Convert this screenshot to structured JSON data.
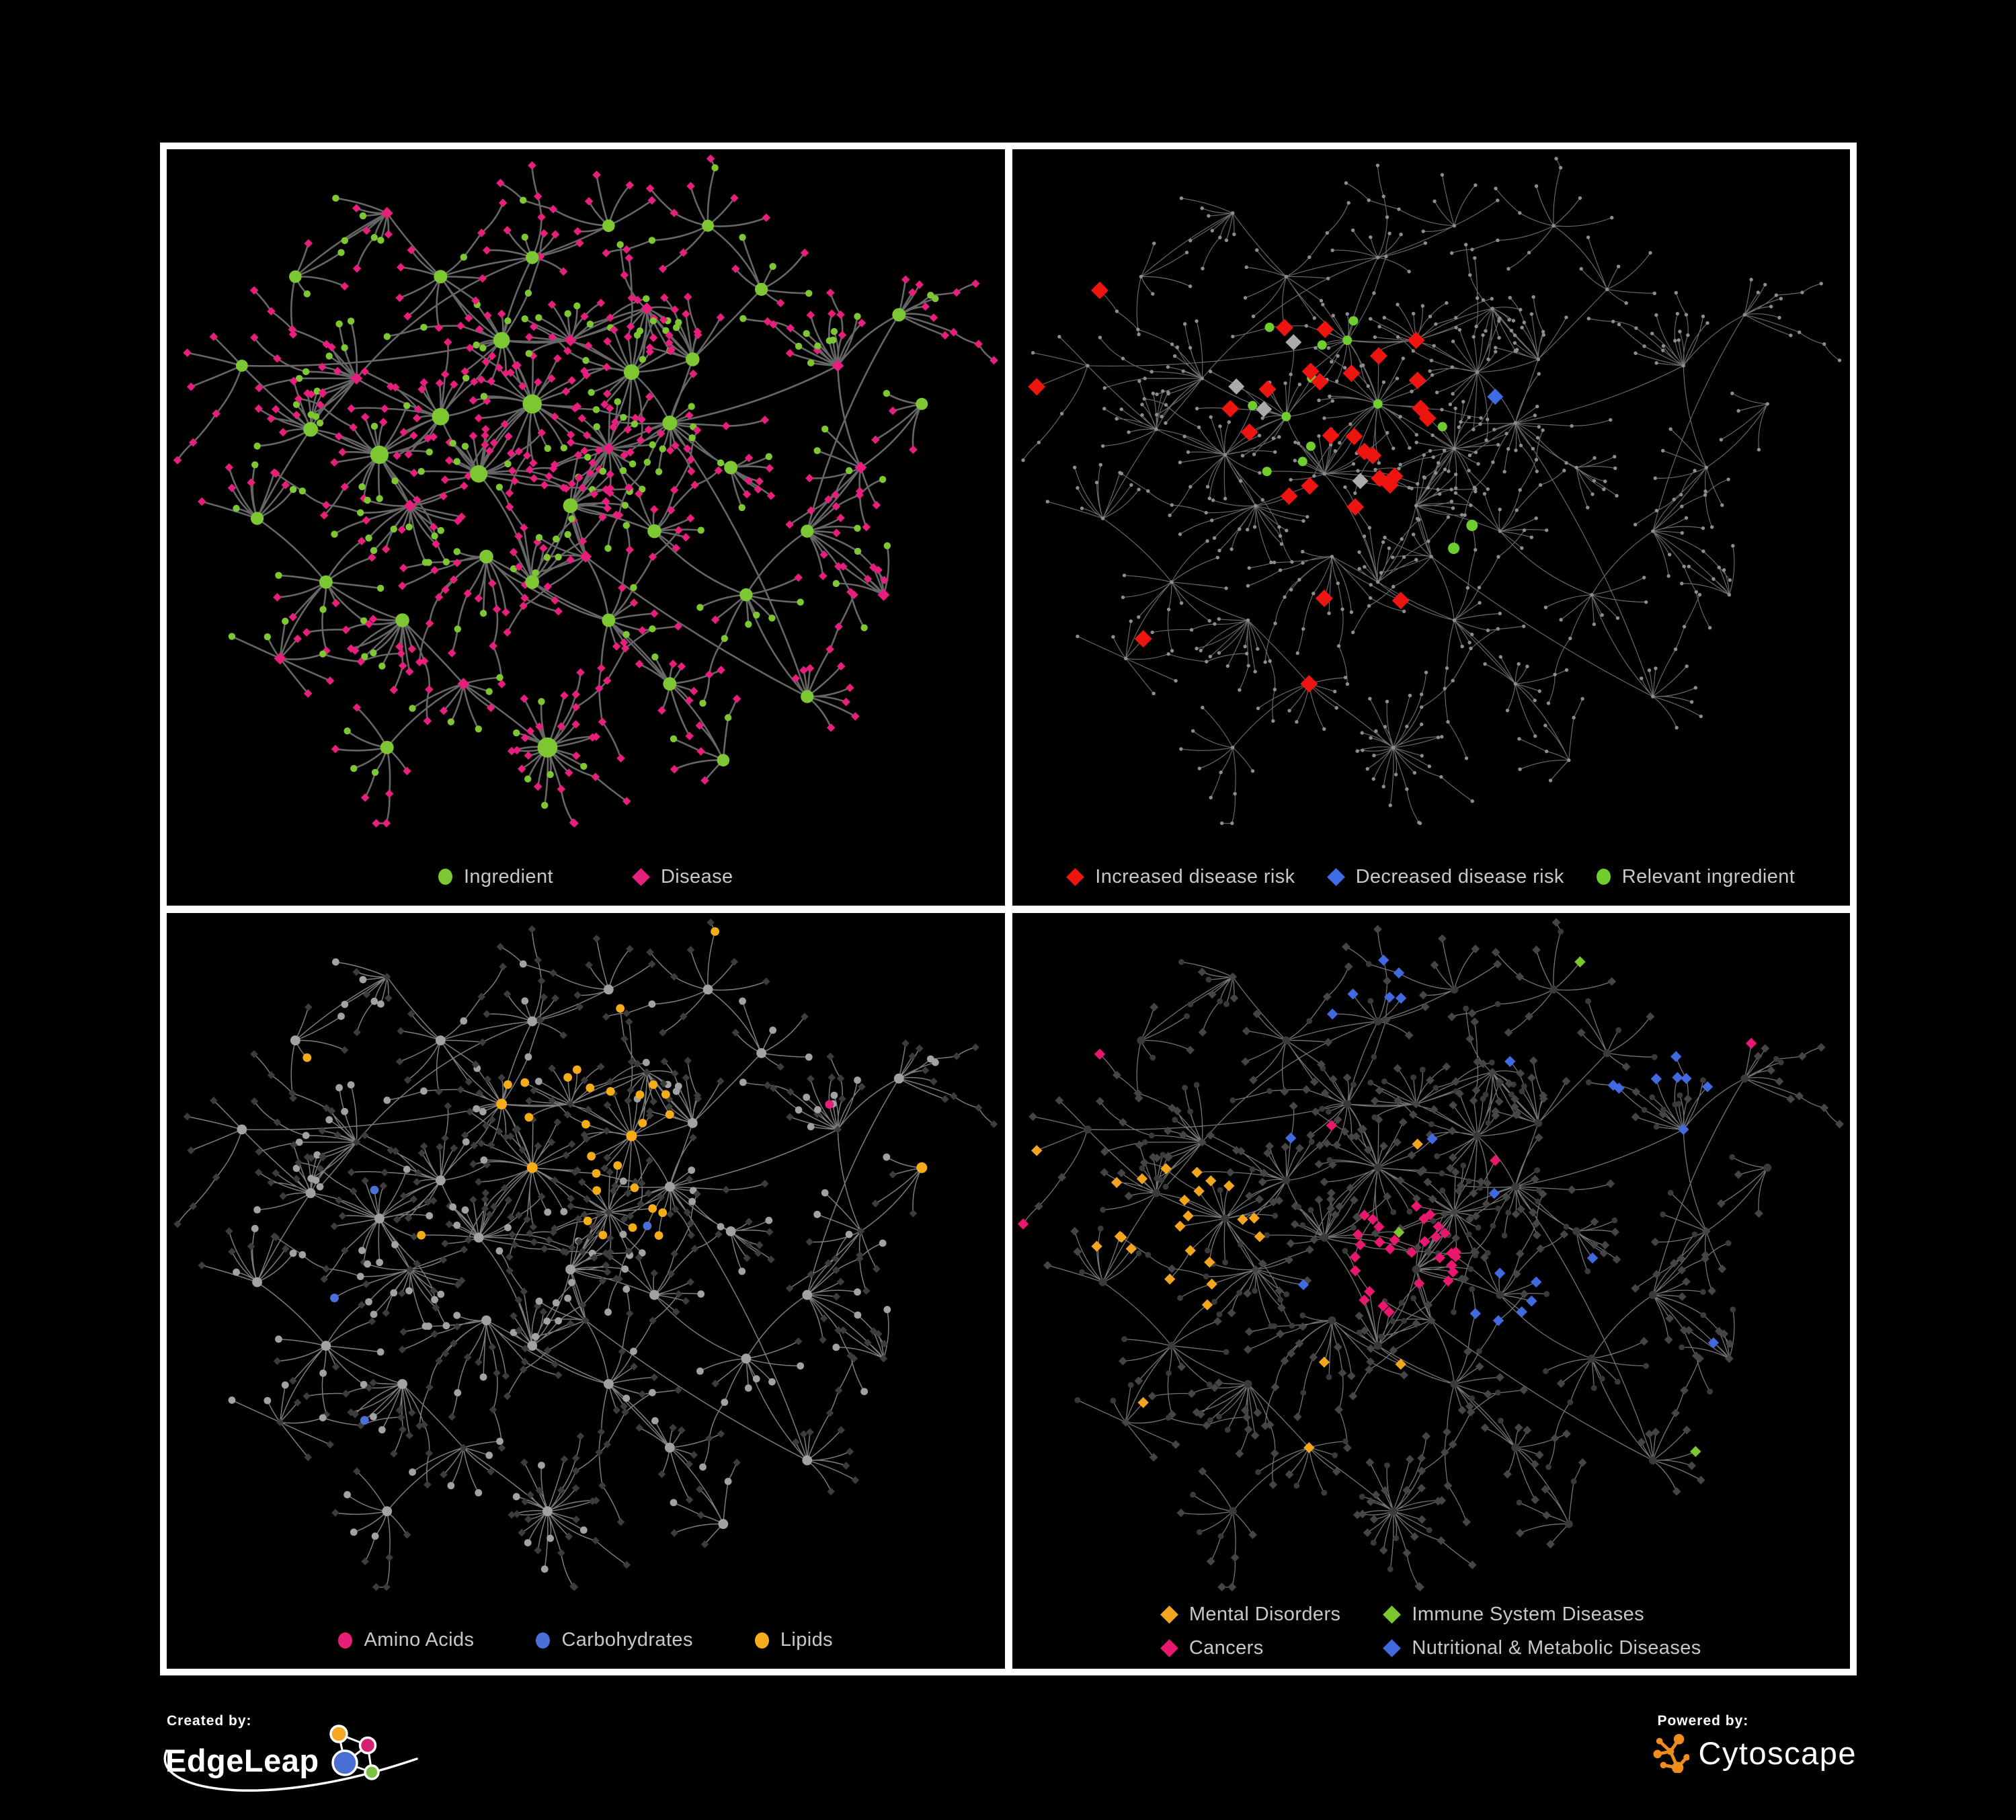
{
  "figure": {
    "background": "#000000",
    "frame_color": "#FFFFFF",
    "legend_text_color": "#C8C8C8"
  },
  "branding": {
    "created_by": "Created by:",
    "brand": "EdgeLeap",
    "powered_by": "Powered by:",
    "engine": "Cytoscape",
    "edgeleap_logo_colors": {
      "orange": "#F5A623",
      "pink": "#D61F72",
      "blue": "#4A6FD4",
      "green": "#7CC242"
    },
    "cytoscape_orange": "#F08C1E"
  },
  "panels": [
    {
      "id": "ingredient-disease",
      "legend": [
        {
          "label": "Ingredient",
          "shape": "circle",
          "color": "#7DC832"
        },
        {
          "label": "Disease",
          "shape": "diamond",
          "color": "#E61E7C"
        }
      ]
    },
    {
      "id": "disease-risk",
      "legend": [
        {
          "label": "Increased disease risk",
          "shape": "diamond",
          "color": "#EE1511"
        },
        {
          "label": "Decreased disease risk",
          "shape": "diamond",
          "color": "#3E6CE4"
        },
        {
          "label": "Relevant ingredient",
          "shape": "circle",
          "color": "#6FCE2E"
        }
      ]
    },
    {
      "id": "nutrient-classes",
      "legend": [
        {
          "label": "Amino Acids",
          "shape": "circle",
          "color": "#E61E78"
        },
        {
          "label": "Carbohydrates",
          "shape": "circle",
          "color": "#4A70D8"
        },
        {
          "label": "Lipids",
          "shape": "circle",
          "color": "#F6AC19"
        }
      ]
    },
    {
      "id": "disease-categories",
      "legend": [
        {
          "label": "Mental Disorders",
          "shape": "diamond",
          "color": "#F3A51F"
        },
        {
          "label": "Immune System Diseases",
          "shape": "diamond",
          "color": "#7CC62E"
        },
        {
          "label": "Cancers",
          "shape": "diamond",
          "color": "#E8186E"
        },
        {
          "label": "Nutritional & Metabolic Diseases",
          "shape": "diamond",
          "color": "#4169E0"
        }
      ]
    }
  ],
  "network_style": {
    "p1": {
      "edge": "#666666",
      "edge_width": 2.6,
      "circle": "#7DC832",
      "diamond": "#E61E7C"
    },
    "p2": {
      "edge": "#6A6A6A",
      "edge_width": 1.15,
      "base_node": "#8D8D8D",
      "increased": "#EE1511",
      "decreased": "#3E6CE4",
      "neutral": "#ABABAB",
      "relevant": "#6FCE2E"
    },
    "p3": {
      "edge": "#7C7C7C",
      "edge_width": 1.5,
      "circle": "#A2A2A2",
      "diamond": "#3C3C3C",
      "amino": "#E61E78",
      "carb": "#4A70D8",
      "lipid": "#F6AC19"
    },
    "p4": {
      "edge": "#747474",
      "edge_width": 1.3,
      "circle": "#3A3A3A",
      "diamond": "#454545",
      "mental": "#F3A51F",
      "immune": "#7CC62E",
      "cancer": "#E8186E",
      "nutritional": "#4169E0"
    }
  }
}
